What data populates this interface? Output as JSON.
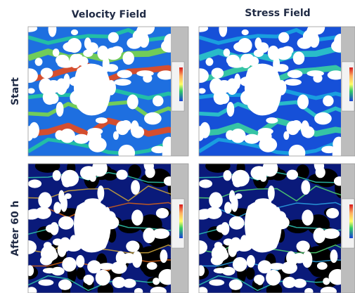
{
  "columns": [
    "Velocity Field",
    "Stress Field"
  ],
  "rows": [
    "Start",
    "After 60 h"
  ]
}
